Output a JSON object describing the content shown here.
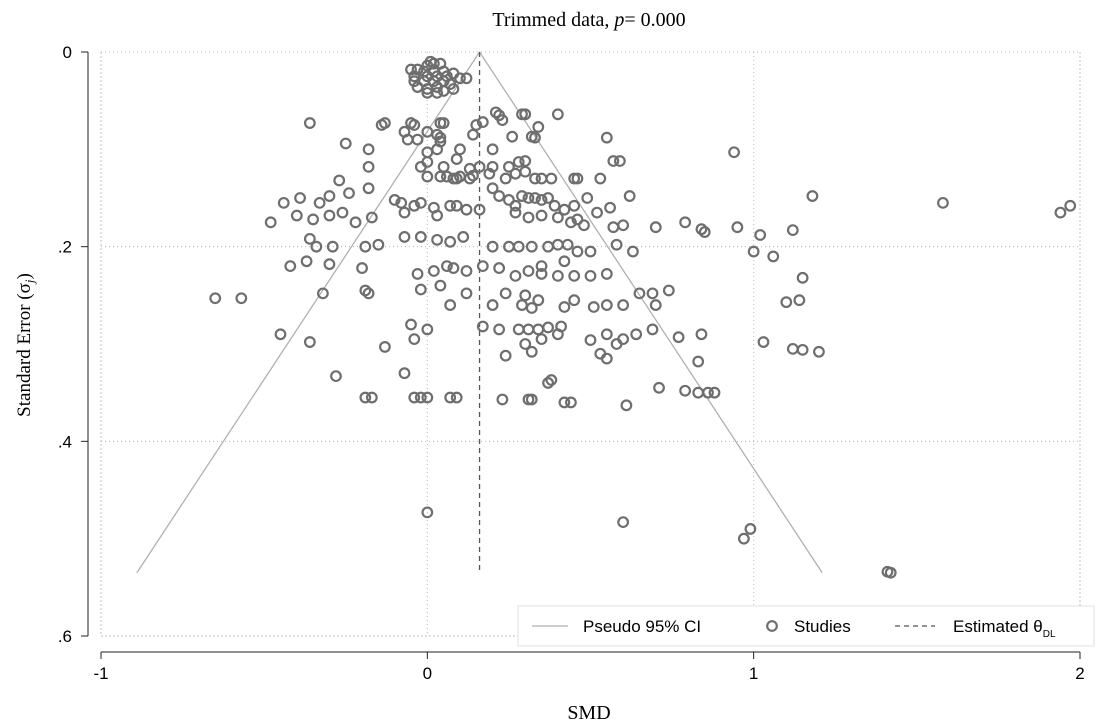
{
  "chart_data": {
    "type": "scatter",
    "title_prefix": "Trimmed data, ",
    "title_p": "p",
    "title_rest": "= 0.000",
    "xlabel": "SMD",
    "ylabel_main": "Standard Error (σ",
    "ylabel_sub": "j",
    "ylabel_close": ")",
    "xlim": [
      -1,
      2
    ],
    "ylim": [
      0,
      0.6
    ],
    "y_inverted": true,
    "x_ticks": [
      -1,
      0,
      1,
      2
    ],
    "x_tick_labels": [
      "-1",
      "0",
      "1",
      "2"
    ],
    "y_ticks": [
      0,
      0.2,
      0.4,
      0.6
    ],
    "y_tick_labels": [
      "0",
      ".2",
      ".4",
      ".6"
    ],
    "grid": true,
    "legend_position": "bottom-right",
    "legend": {
      "ci_label": "Pseudo 95% CI",
      "studies_label": "Studies",
      "est_label": "Estimated θ",
      "est_sub": "DL"
    },
    "colors": {
      "points": "#6e6e6e",
      "ci_lines": "#b0b0b0",
      "estimate": "#555555"
    },
    "estimated_theta": 0.16,
    "funnel": {
      "apex_se": 0.0,
      "base_se": 0.535,
      "left_x_at_base": -0.89,
      "right_x_at_base": 1.21
    },
    "series": [
      {
        "name": "Studies",
        "points": [
          [
            0.0,
            0.014
          ],
          [
            0.01,
            0.01
          ],
          [
            0.02,
            0.012
          ],
          [
            0.04,
            0.012
          ],
          [
            -0.05,
            0.018
          ],
          [
            -0.03,
            0.018
          ],
          [
            -0.01,
            0.02
          ],
          [
            0.02,
            0.02
          ],
          [
            0.05,
            0.02
          ],
          [
            0.08,
            0.022
          ],
          [
            -0.04,
            0.025
          ],
          [
            0.0,
            0.025
          ],
          [
            0.03,
            0.025
          ],
          [
            0.06,
            0.025
          ],
          [
            0.1,
            0.027
          ],
          [
            0.12,
            0.027
          ],
          [
            -0.04,
            0.03
          ],
          [
            -0.01,
            0.03
          ],
          [
            0.02,
            0.03
          ],
          [
            0.05,
            0.03
          ],
          [
            0.07,
            0.033
          ],
          [
            -0.03,
            0.036
          ],
          [
            0.0,
            0.038
          ],
          [
            0.03,
            0.036
          ],
          [
            0.05,
            0.04
          ],
          [
            0.08,
            0.038
          ],
          [
            0.0,
            0.042
          ],
          [
            0.03,
            0.042
          ],
          [
            -0.36,
            0.073
          ],
          [
            -0.13,
            0.073
          ],
          [
            -0.05,
            0.073
          ],
          [
            0.05,
            0.073
          ],
          [
            -0.14,
            0.075
          ],
          [
            -0.04,
            0.075
          ],
          [
            0.04,
            0.073
          ],
          [
            0.15,
            0.075
          ],
          [
            0.17,
            0.072
          ],
          [
            0.21,
            0.062
          ],
          [
            0.22,
            0.065
          ],
          [
            0.23,
            0.07
          ],
          [
            0.29,
            0.064
          ],
          [
            0.3,
            0.064
          ],
          [
            0.4,
            0.064
          ],
          [
            -0.07,
            0.082
          ],
          [
            0.0,
            0.082
          ],
          [
            0.03,
            0.085
          ],
          [
            -0.06,
            0.09
          ],
          [
            -0.03,
            0.09
          ],
          [
            0.04,
            0.088
          ],
          [
            0.04,
            0.092
          ],
          [
            0.14,
            0.085
          ],
          [
            0.26,
            0.087
          ],
          [
            0.32,
            0.087
          ],
          [
            0.34,
            0.077
          ],
          [
            0.33,
            0.088
          ],
          [
            0.55,
            0.088
          ],
          [
            0.94,
            0.103
          ],
          [
            -0.18,
            0.1
          ],
          [
            -0.25,
            0.094
          ],
          [
            0.0,
            0.103
          ],
          [
            0.03,
            0.1
          ],
          [
            0.1,
            0.1
          ],
          [
            0.2,
            0.1
          ],
          [
            0.0,
            0.113
          ],
          [
            0.09,
            0.11
          ],
          [
            0.2,
            0.118
          ],
          [
            0.25,
            0.118
          ],
          [
            0.28,
            0.113
          ],
          [
            0.3,
            0.112
          ],
          [
            0.57,
            0.112
          ],
          [
            0.59,
            0.112
          ],
          [
            -0.18,
            0.118
          ],
          [
            -0.02,
            0.118
          ],
          [
            0.05,
            0.118
          ],
          [
            0.13,
            0.12
          ],
          [
            0.16,
            0.118
          ],
          [
            0.19,
            0.125
          ],
          [
            0.27,
            0.125
          ],
          [
            0.3,
            0.123
          ],
          [
            0.0,
            0.128
          ],
          [
            0.04,
            0.128
          ],
          [
            0.06,
            0.128
          ],
          [
            0.08,
            0.13
          ],
          [
            0.09,
            0.13
          ],
          [
            0.1,
            0.128
          ],
          [
            0.13,
            0.13
          ],
          [
            0.14,
            0.127
          ],
          [
            0.24,
            0.13
          ],
          [
            0.33,
            0.13
          ],
          [
            0.35,
            0.13
          ],
          [
            0.38,
            0.13
          ],
          [
            0.45,
            0.13
          ],
          [
            0.46,
            0.13
          ],
          [
            0.53,
            0.13
          ],
          [
            -0.27,
            0.132
          ],
          [
            -0.18,
            0.14
          ],
          [
            -0.44,
            0.155
          ],
          [
            -0.39,
            0.15
          ],
          [
            -0.33,
            0.155
          ],
          [
            -0.3,
            0.148
          ],
          [
            -0.24,
            0.145
          ],
          [
            -0.1,
            0.152
          ],
          [
            -0.08,
            0.155
          ],
          [
            -0.04,
            0.158
          ],
          [
            -0.02,
            0.155
          ],
          [
            0.02,
            0.16
          ],
          [
            0.07,
            0.158
          ],
          [
            0.09,
            0.158
          ],
          [
            0.12,
            0.162
          ],
          [
            0.16,
            0.162
          ],
          [
            0.2,
            0.14
          ],
          [
            0.22,
            0.148
          ],
          [
            0.25,
            0.152
          ],
          [
            0.27,
            0.158
          ],
          [
            0.29,
            0.148
          ],
          [
            0.31,
            0.15
          ],
          [
            0.33,
            0.15
          ],
          [
            0.35,
            0.152
          ],
          [
            0.37,
            0.15
          ],
          [
            0.39,
            0.158
          ],
          [
            0.42,
            0.162
          ],
          [
            0.45,
            0.158
          ],
          [
            0.49,
            0.15
          ],
          [
            0.52,
            0.165
          ],
          [
            0.56,
            0.16
          ],
          [
            0.62,
            0.148
          ],
          [
            1.18,
            0.148
          ],
          [
            1.58,
            0.155
          ],
          [
            1.97,
            0.158
          ],
          [
            1.94,
            0.165
          ],
          [
            -0.48,
            0.175
          ],
          [
            -0.4,
            0.168
          ],
          [
            -0.35,
            0.172
          ],
          [
            -0.3,
            0.168
          ],
          [
            -0.26,
            0.165
          ],
          [
            -0.22,
            0.175
          ],
          [
            -0.17,
            0.17
          ],
          [
            -0.07,
            0.165
          ],
          [
            0.03,
            0.168
          ],
          [
            0.27,
            0.165
          ],
          [
            0.31,
            0.17
          ],
          [
            0.35,
            0.168
          ],
          [
            0.4,
            0.17
          ],
          [
            0.44,
            0.175
          ],
          [
            0.46,
            0.172
          ],
          [
            0.48,
            0.178
          ],
          [
            0.57,
            0.18
          ],
          [
            0.6,
            0.178
          ],
          [
            0.7,
            0.18
          ],
          [
            0.79,
            0.175
          ],
          [
            0.84,
            0.182
          ],
          [
            0.85,
            0.185
          ],
          [
            1.02,
            0.188
          ],
          [
            1.12,
            0.183
          ],
          [
            0.95,
            0.18
          ],
          [
            -0.36,
            0.192
          ],
          [
            -0.34,
            0.2
          ],
          [
            -0.29,
            0.2
          ],
          [
            -0.19,
            0.2
          ],
          [
            -0.15,
            0.198
          ],
          [
            -0.07,
            0.19
          ],
          [
            -0.02,
            0.19
          ],
          [
            0.03,
            0.193
          ],
          [
            0.07,
            0.195
          ],
          [
            0.11,
            0.19
          ],
          [
            0.2,
            0.2
          ],
          [
            0.25,
            0.2
          ],
          [
            0.28,
            0.2
          ],
          [
            0.32,
            0.2
          ],
          [
            0.37,
            0.2
          ],
          [
            0.4,
            0.198
          ],
          [
            0.43,
            0.198
          ],
          [
            0.46,
            0.205
          ],
          [
            0.5,
            0.205
          ],
          [
            0.58,
            0.198
          ],
          [
            0.63,
            0.205
          ],
          [
            1.0,
            0.205
          ],
          [
            1.06,
            0.21
          ],
          [
            -0.42,
            0.22
          ],
          [
            -0.37,
            0.215
          ],
          [
            -0.3,
            0.218
          ],
          [
            -0.2,
            0.222
          ],
          [
            -0.03,
            0.228
          ],
          [
            0.02,
            0.225
          ],
          [
            0.06,
            0.22
          ],
          [
            0.08,
            0.222
          ],
          [
            0.12,
            0.225
          ],
          [
            0.17,
            0.22
          ],
          [
            0.22,
            0.222
          ],
          [
            0.27,
            0.23
          ],
          [
            0.31,
            0.225
          ],
          [
            0.35,
            0.228
          ],
          [
            0.4,
            0.23
          ],
          [
            0.45,
            0.23
          ],
          [
            0.5,
            0.23
          ],
          [
            0.55,
            0.228
          ],
          [
            0.35,
            0.22
          ],
          [
            0.42,
            0.215
          ],
          [
            1.15,
            0.232
          ],
          [
            -0.02,
            0.244
          ],
          [
            0.04,
            0.24
          ],
          [
            0.12,
            0.248
          ],
          [
            0.24,
            0.248
          ],
          [
            0.3,
            0.25
          ],
          [
            0.34,
            0.255
          ],
          [
            0.45,
            0.255
          ],
          [
            0.55,
            0.26
          ],
          [
            0.65,
            0.248
          ],
          [
            0.69,
            0.248
          ],
          [
            0.74,
            0.245
          ],
          [
            -0.65,
            0.253
          ],
          [
            -0.57,
            0.253
          ],
          [
            -0.32,
            0.248
          ],
          [
            -0.19,
            0.245
          ],
          [
            -0.18,
            0.248
          ],
          [
            0.07,
            0.26
          ],
          [
            0.2,
            0.26
          ],
          [
            0.29,
            0.26
          ],
          [
            0.32,
            0.263
          ],
          [
            0.42,
            0.262
          ],
          [
            0.51,
            0.262
          ],
          [
            0.6,
            0.26
          ],
          [
            0.7,
            0.26
          ],
          [
            1.1,
            0.257
          ],
          [
            1.14,
            0.255
          ],
          [
            -0.45,
            0.29
          ],
          [
            -0.36,
            0.298
          ],
          [
            -0.13,
            0.303
          ],
          [
            -0.05,
            0.28
          ],
          [
            -0.04,
            0.295
          ],
          [
            0.0,
            0.285
          ],
          [
            0.17,
            0.282
          ],
          [
            0.22,
            0.285
          ],
          [
            0.28,
            0.285
          ],
          [
            0.31,
            0.285
          ],
          [
            0.34,
            0.285
          ],
          [
            0.37,
            0.283
          ],
          [
            0.41,
            0.282
          ],
          [
            0.3,
            0.3
          ],
          [
            0.35,
            0.295
          ],
          [
            0.4,
            0.29
          ],
          [
            0.5,
            0.296
          ],
          [
            0.55,
            0.29
          ],
          [
            0.58,
            0.3
          ],
          [
            0.6,
            0.295
          ],
          [
            0.64,
            0.29
          ],
          [
            0.69,
            0.285
          ],
          [
            0.77,
            0.293
          ],
          [
            0.84,
            0.29
          ],
          [
            1.03,
            0.298
          ],
          [
            1.12,
            0.305
          ],
          [
            1.15,
            0.306
          ],
          [
            1.2,
            0.308
          ],
          [
            0.32,
            0.308
          ],
          [
            0.24,
            0.312
          ],
          [
            0.53,
            0.31
          ],
          [
            0.55,
            0.315
          ],
          [
            0.83,
            0.318
          ],
          [
            -0.28,
            0.333
          ],
          [
            -0.07,
            0.33
          ],
          [
            0.37,
            0.34
          ],
          [
            0.38,
            0.337
          ],
          [
            0.71,
            0.345
          ],
          [
            0.79,
            0.348
          ],
          [
            0.83,
            0.35
          ],
          [
            0.86,
            0.35
          ],
          [
            0.88,
            0.35
          ],
          [
            -0.19,
            0.355
          ],
          [
            -0.17,
            0.355
          ],
          [
            -0.04,
            0.355
          ],
          [
            -0.02,
            0.355
          ],
          [
            0.0,
            0.355
          ],
          [
            0.07,
            0.355
          ],
          [
            0.09,
            0.355
          ],
          [
            0.23,
            0.357
          ],
          [
            0.31,
            0.357
          ],
          [
            0.32,
            0.357
          ],
          [
            0.42,
            0.36
          ],
          [
            0.44,
            0.36
          ],
          [
            0.61,
            0.363
          ],
          [
            0.0,
            0.473
          ],
          [
            0.6,
            0.483
          ],
          [
            0.99,
            0.49
          ],
          [
            0.97,
            0.5
          ],
          [
            1.41,
            0.534
          ],
          [
            1.42,
            0.535
          ]
        ]
      }
    ]
  }
}
